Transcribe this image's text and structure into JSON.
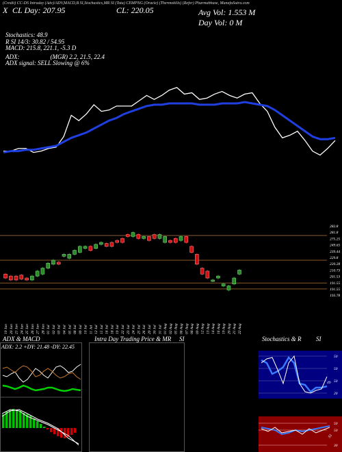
{
  "header": {
    "top_line": "(Credit) CC-DS Intraday (Adv)/ADV,MACD,B SI,Stochastics,MR SI (Tata) CEMPNG (Oracle) (Thermokills) (Refer) Pharmabhase, MunafaSutra.com",
    "x_tag": "X",
    "cl_left": "CL Day: 207.95",
    "cl_center": "CL: 220.05",
    "avg_vol": "Avg Vol: 1.553 M",
    "day_vol": "Day Vol: 0   M"
  },
  "info": {
    "stoch": "Stochastics: 48.9",
    "rsi": "R SI 14/3: 30.82 / 54.95",
    "macd": "MACD: 215.8, 221.1, -5.3 D",
    "adx": "ADX:                    (MGR) 2.2, 21.5, 22.4",
    "adx_signal": "ADX signal: SELL Slowing @ 6%"
  },
  "price_axis_labels": [
    "282.8",
    "281.8",
    "275.25",
    "249.65",
    "239.44",
    "229.8",
    "220.28",
    "210.73",
    "201.53",
    "191.55",
    "191.55",
    "193.78"
  ],
  "date_labels": [
    "19 Jun",
    "20 Jun",
    "21 Jun",
    "24 Jun",
    "25 Jun",
    "26 Jun",
    "27 Jun",
    "28 Jun",
    "01 Jul",
    "02 Jul",
    "03 Jul",
    "04 Jul",
    "05 Jul",
    "08 Jul",
    "09 Jul",
    "10 Jul",
    "11 Jul",
    "12 Jul",
    "15 Jul",
    "16 Jul",
    "18 Jul",
    "19 Jul",
    "22 Jul",
    "23 Jul",
    "24 Jul",
    "25 Jul",
    "26 Jul",
    "29 Jul",
    "30 Jul",
    "31 Jul",
    "01 Aug",
    "02 Aug",
    "05 Aug",
    "06 Aug",
    "07 Aug",
    "08 Aug",
    "09 Aug",
    "12 Aug",
    "13 Aug",
    "14 Aug",
    "16 Aug",
    "19 Aug",
    "20 Aug",
    "21 Aug",
    "22 Aug"
  ],
  "panels": {
    "adx_title": "ADX  & MACD",
    "adx_values": "ADX: 2.2  +DY: 21.48  -DY: 22.45",
    "intraday_title": "Intra  Day Trading Price  & MR",
    "intraday_si": "SI",
    "stoch_title": "Stochastics & R",
    "stoch_si": "SI",
    "stoch_ticks": [
      "50",
      "50",
      "50",
      "20"
    ],
    "rsi_ticks": [
      "50",
      "50",
      "30"
    ],
    "stoch_value_label": "49",
    "rsi_value_label": "55"
  },
  "colors": {
    "up_candle": "#2a8a2a",
    "down_candle": "#d01010",
    "ema_blue": "#1f3fe0",
    "price_line": "#ffffff",
    "grid_orange": "#8a5a2a",
    "rsi_panel_bg": "#8b0000",
    "stoch_panel_bg": "#000080",
    "macd_green": "#00c000",
    "macd_red": "#d00000"
  },
  "chart_data": [
    {
      "type": "line",
      "name": "price_vs_ema",
      "x": [
        1,
        2,
        3,
        4,
        5,
        6,
        7,
        8,
        9,
        10,
        11,
        12,
        13,
        14,
        15,
        16,
        17,
        18,
        19,
        20,
        21,
        22,
        23,
        24,
        25,
        26,
        27,
        28,
        29,
        30,
        31,
        32,
        33,
        34,
        35,
        36,
        37,
        38,
        39,
        40,
        41,
        42,
        43,
        44,
        45
      ],
      "series": [
        {
          "values": [
            210,
            210,
            212,
            212,
            209,
            210,
            212,
            213,
            221,
            237,
            233,
            238,
            245,
            240,
            241,
            244,
            244,
            244,
            248,
            252,
            249,
            252,
            256,
            258,
            253,
            254,
            249,
            250,
            253,
            255,
            252,
            250,
            253,
            254,
            246,
            240,
            228,
            220,
            222,
            225,
            218,
            210,
            207,
            212,
            218
          ]
        },
        {
          "values": [
            209,
            210,
            210,
            211,
            211,
            212,
            213,
            214,
            217,
            220,
            222,
            224,
            227,
            230,
            233,
            235,
            238,
            240,
            242,
            244,
            245,
            245,
            246,
            246,
            246,
            246,
            245,
            245,
            245,
            246,
            246,
            246,
            247,
            246,
            245,
            244,
            241,
            237,
            233,
            229,
            225,
            221,
            219,
            219,
            220
          ]
        }
      ]
    },
    {
      "type": "bar",
      "name": "candles",
      "series": [
        {
          "values": [
            [
              212,
              208
            ],
            [
              210,
              206
            ],
            [
              210,
              206
            ],
            [
              211,
              207
            ],
            [
              208,
              206
            ],
            [
              206,
              210
            ],
            [
              210,
              215
            ],
            [
              212,
              218
            ],
            [
              218,
              223
            ],
            [
              222,
              226
            ],
            [
              224,
              222
            ],
            [
              230,
              232
            ],
            [
              228,
              232
            ],
            [
              232,
              236
            ],
            [
              234,
              240
            ],
            [
              238,
              240
            ],
            [
              240,
              236
            ],
            [
              238,
              242
            ],
            [
              242,
              244
            ],
            [
              243,
              240
            ],
            [
              244,
              240
            ],
            [
              246,
              244
            ],
            [
              248,
              244
            ],
            [
              252,
              250
            ],
            [
              250,
              254
            ],
            [
              252,
              248
            ],
            [
              248,
              250
            ],
            [
              250,
              246
            ],
            [
              252,
              248
            ],
            [
              248,
              252
            ],
            [
              244,
              250
            ],
            [
              246,
              244
            ],
            [
              248,
              244
            ],
            [
              246,
              250
            ],
            [
              250,
              244
            ],
            [
              240,
              234
            ],
            [
              232,
              222
            ],
            [
              218,
              212
            ],
            [
              215,
              208
            ],
            [
              205,
              206
            ],
            [
              208,
              210
            ],
            [
              200,
              202
            ],
            [
              196,
              200
            ],
            [
              202,
              208
            ],
            [
              212,
              216
            ]
          ]
        }
      ]
    }
  ]
}
